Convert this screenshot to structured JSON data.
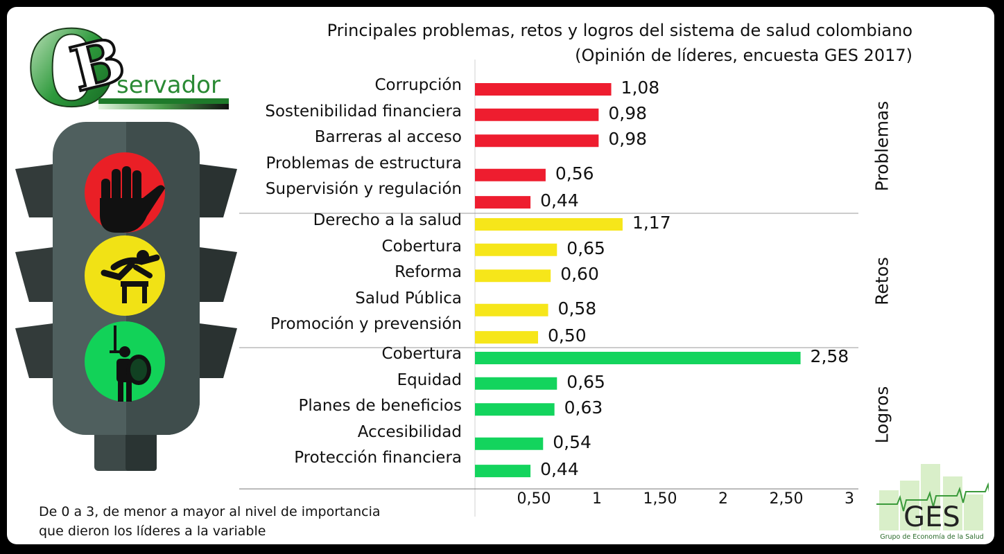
{
  "chart_data": {
    "type": "bar",
    "orientation": "horizontal",
    "title": "Principales problemas, retos y logros del sistema de salud colombiano",
    "subtitle": "(Opinión de líderes, encuesta GES 2017)",
    "xlim": [
      0,
      3
    ],
    "xticks": [
      "0,50",
      "1",
      "1,50",
      "2",
      "2,50",
      "3"
    ],
    "xtick_values": [
      0.5,
      1,
      1.5,
      2,
      2.5,
      3
    ],
    "groups": [
      {
        "name": "Problemas",
        "color": "#ee1d2f",
        "categories": [
          "Corrupción",
          "Sostenibilidad financiera",
          "Barreras al acceso",
          "Problemas de estructura",
          "Supervisión y regulación"
        ],
        "values": [
          1.08,
          0.98,
          0.98,
          0.56,
          0.44
        ],
        "labels": [
          "1,08",
          "0,98",
          "0,98",
          "0,56",
          "0,44"
        ]
      },
      {
        "name": "Retos",
        "color": "#f6e61a",
        "categories": [
          "Derecho a la salud",
          "Cobertura",
          "Reforma",
          "Salud Pública",
          "Promoción y prevensión"
        ],
        "values": [
          1.17,
          0.65,
          0.6,
          0.58,
          0.5
        ],
        "labels": [
          "1,17",
          "0,65",
          "0,60",
          "0,58",
          "0,50"
        ]
      },
      {
        "name": "Logros",
        "color": "#13d45d",
        "categories": [
          "Cobertura",
          "Equidad",
          "Planes de beneficios",
          "Accesibilidad",
          "Protección financiera"
        ],
        "values": [
          2.58,
          0.65,
          0.63,
          0.54,
          0.44
        ],
        "labels": [
          "2,58",
          "0,65",
          "0,63",
          "0,54",
          "0,44"
        ]
      }
    ]
  },
  "note_line1": "De 0 a 3, de menor a mayor al nivel de importancia",
  "note_line2": "que dieron los líderes a la variable",
  "logo_text": "servador",
  "logo_letter_o": "O",
  "logo_letter_b": "B",
  "ges_logo_text": "GES",
  "ges_logo_caption": "Grupo de Economía de la Salud",
  "icons": [
    "stop-hand-icon",
    "hurdle-jumper-icon",
    "warrior-shield-icon",
    "traffic-light-icon"
  ]
}
